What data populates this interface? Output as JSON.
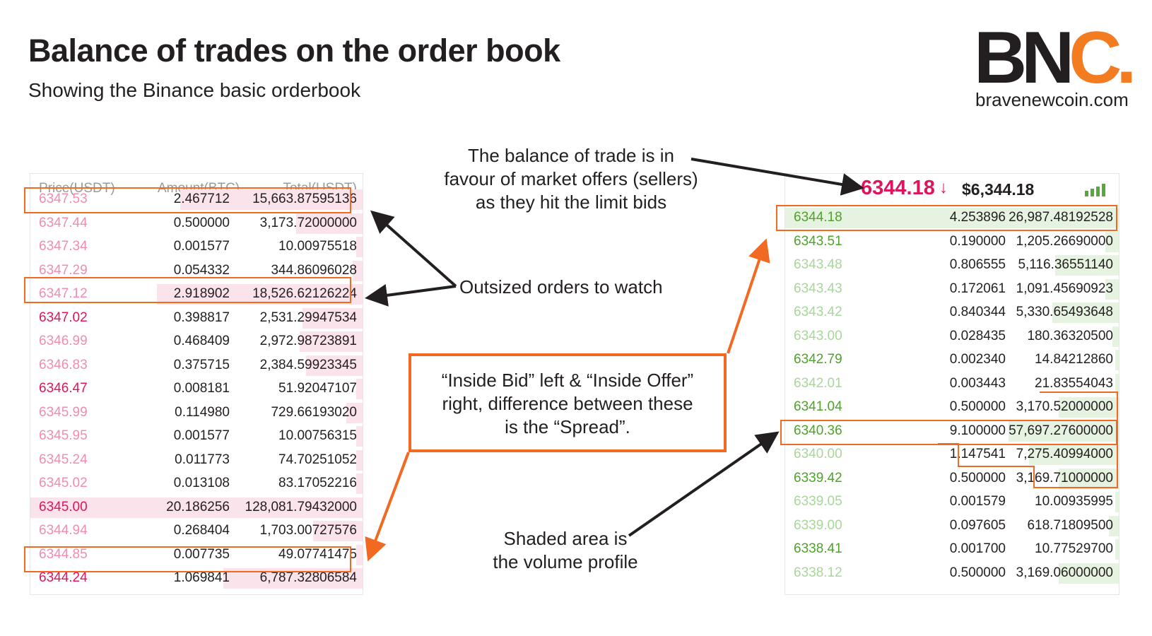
{
  "header": {
    "title": "Balance of trades on the order book",
    "subtitle": "Showing the Binance basic orderbook"
  },
  "logo": {
    "letters_bn": "BN",
    "letters_c": "C.",
    "url": "bravenewcoin.com"
  },
  "colors": {
    "ask_dark": "#e0145e",
    "ask_light": "#f38bb0",
    "bid_dark": "#4ea32b",
    "bid_light": "#a9d69b",
    "highlight": "#f26a21",
    "ask_shade": "#fbe3ec",
    "bid_shade": "#e6f3e1"
  },
  "left_book": {
    "headers": [
      "Price(USDT)",
      "Amount(BTC)",
      "Total(USDT)"
    ],
    "rows": [
      {
        "price": "6347.53",
        "amount": "2.467712",
        "total": "15,663.87595136",
        "dark": false,
        "vol": 0.55
      },
      {
        "price": "6347.44",
        "amount": "0.500000",
        "total": "3,173.72000000",
        "dark": false,
        "vol": 0.2
      },
      {
        "price": "6347.34",
        "amount": "0.001577",
        "total": "10.00975518",
        "dark": false,
        "vol": 0.02
      },
      {
        "price": "6347.29",
        "amount": "0.054332",
        "total": "344.86096028",
        "dark": false,
        "vol": 0.03
      },
      {
        "price": "6347.12",
        "amount": "2.918902",
        "total": "18,526.62126224",
        "dark": false,
        "vol": 0.62
      },
      {
        "price": "6347.02",
        "amount": "0.398817",
        "total": "2,531.29947534",
        "dark": true,
        "vol": 0.18
      },
      {
        "price": "6346.99",
        "amount": "0.468409",
        "total": "2,972.98723891",
        "dark": false,
        "vol": 0.19
      },
      {
        "price": "6346.83",
        "amount": "0.375715",
        "total": "2,384.59923345",
        "dark": false,
        "vol": 0.17
      },
      {
        "price": "6346.47",
        "amount": "0.008181",
        "total": "51.92047107",
        "dark": true,
        "vol": 0.02
      },
      {
        "price": "6345.99",
        "amount": "0.114980",
        "total": "729.66193020",
        "dark": false,
        "vol": 0.05
      },
      {
        "price": "6345.95",
        "amount": "0.001577",
        "total": "10.00756315",
        "dark": false,
        "vol": 0.02
      },
      {
        "price": "6345.24",
        "amount": "0.011773",
        "total": "74.70251052",
        "dark": false,
        "vol": 0.02
      },
      {
        "price": "6345.02",
        "amount": "0.013108",
        "total": "83.17052216",
        "dark": false,
        "vol": 0.02
      },
      {
        "price": "6345.00",
        "amount": "20.186256",
        "total": "128,081.79432000",
        "dark": true,
        "vol": 1.0
      },
      {
        "price": "6344.94",
        "amount": "0.268404",
        "total": "1,703.00727576",
        "dark": false,
        "vol": 0.15
      },
      {
        "price": "6344.85",
        "amount": "0.007735",
        "total": "49.07741475",
        "dark": false,
        "vol": 0.02
      },
      {
        "price": "6344.24",
        "amount": "1.069841",
        "total": "6,787.32806584",
        "dark": true,
        "vol": 0.42
      }
    ]
  },
  "right_book": {
    "ticker_price": "6344.18",
    "ticker_arrow": "↓",
    "ticker_usd": "$6,344.18",
    "rows": [
      {
        "price": "6344.18",
        "amount": "4.253896",
        "total": "26,987.48192528",
        "dark": true,
        "vol": 1.0
      },
      {
        "price": "6343.51",
        "amount": "0.190000",
        "total": "1,205.26690000",
        "dark": true,
        "vol": 0.04
      },
      {
        "price": "6343.48",
        "amount": "0.806555",
        "total": "5,116.36551140",
        "dark": false,
        "vol": 0.19
      },
      {
        "price": "6343.43",
        "amount": "0.172061",
        "total": "1,091.45690923",
        "dark": false,
        "vol": 0.04
      },
      {
        "price": "6343.42",
        "amount": "0.840344",
        "total": "5,330.65493648",
        "dark": false,
        "vol": 0.2
      },
      {
        "price": "6343.00",
        "amount": "0.028435",
        "total": "180.36320500",
        "dark": false,
        "vol": 0.02
      },
      {
        "price": "6342.79",
        "amount": "0.002340",
        "total": "14.84212860",
        "dark": true,
        "vol": 0.01
      },
      {
        "price": "6342.01",
        "amount": "0.003443",
        "total": "21.83554043",
        "dark": false,
        "vol": 0.01
      },
      {
        "price": "6341.04",
        "amount": "0.500000",
        "total": "3,170.52000000",
        "dark": true,
        "vol": 0.18
      },
      {
        "price": "6340.36",
        "amount": "9.100000",
        "total": "57,697.27600000",
        "dark": true,
        "vol": 0.33
      },
      {
        "price": "6340.00",
        "amount": "1.147541",
        "total": "7,275.40994000",
        "dark": false,
        "vol": 0.27
      },
      {
        "price": "6339.42",
        "amount": "0.500000",
        "total": "3,169.71000000",
        "dark": true,
        "vol": 0.18
      },
      {
        "price": "6339.05",
        "amount": "0.001579",
        "total": "10.00935995",
        "dark": false,
        "vol": 0.01
      },
      {
        "price": "6339.00",
        "amount": "0.097605",
        "total": "618.71809500",
        "dark": false,
        "vol": 0.03
      },
      {
        "price": "6338.41",
        "amount": "0.001700",
        "total": "10.77529700",
        "dark": true,
        "vol": 0.01
      },
      {
        "price": "6338.12",
        "amount": "0.500000",
        "total": "3,169.06000000",
        "dark": false,
        "vol": 0.18
      }
    ]
  },
  "annotations": {
    "balance": [
      "The balance of trade is in",
      "favour of market offers (sellers)",
      "as they hit the limit bids"
    ],
    "outsized": "Outsized orders to watch",
    "spread": [
      "“Inside Bid” left & “Inside Offer”",
      "right, difference between these",
      "is the “Spread”."
    ],
    "shaded": [
      "Shaded area is",
      "the volume profile"
    ]
  }
}
